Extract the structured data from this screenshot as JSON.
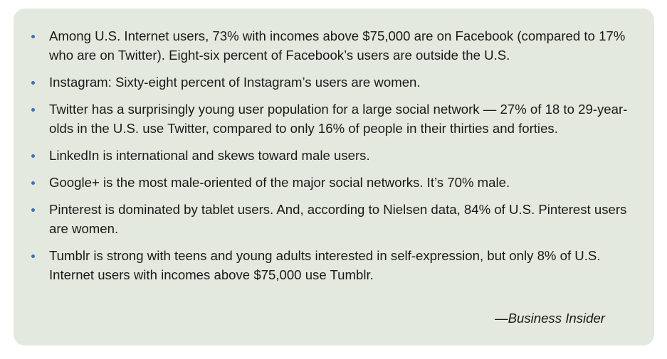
{
  "bullets": [
    "Among U.S. Internet users, 73% with incomes above $75,000 are on Facebook (compared to 17% who are on Twitter). Eight-six percent of Facebook’s users are outside the U.S.",
    "Instagram: Sixty-eight percent of Instagram’s users are women.",
    "Twitter has a surprisingly young user population for a large social network — 27% of 18 to 29-year-olds in the U.S. use Twitter, compared to only 16% of people in their thirties and forties.",
    "LinkedIn is international and skews toward male users.",
    "Google+ is the most male-oriented of the major social networks. It’s 70% male.",
    "Pinterest is dominated by tablet users. And, according to Nielsen data, 84% of U.S. Pinterest users are women.",
    "Tumblr is strong with teens and young adults interested in self-expression, but only 8% of U.S. Internet users with incomes above $75,000 use Tumblr."
  ],
  "source": "—Business Insider",
  "colors": {
    "panel_background": "#e3e9df",
    "bullet": "#3a6fc4",
    "text": "#1a1a1a"
  }
}
